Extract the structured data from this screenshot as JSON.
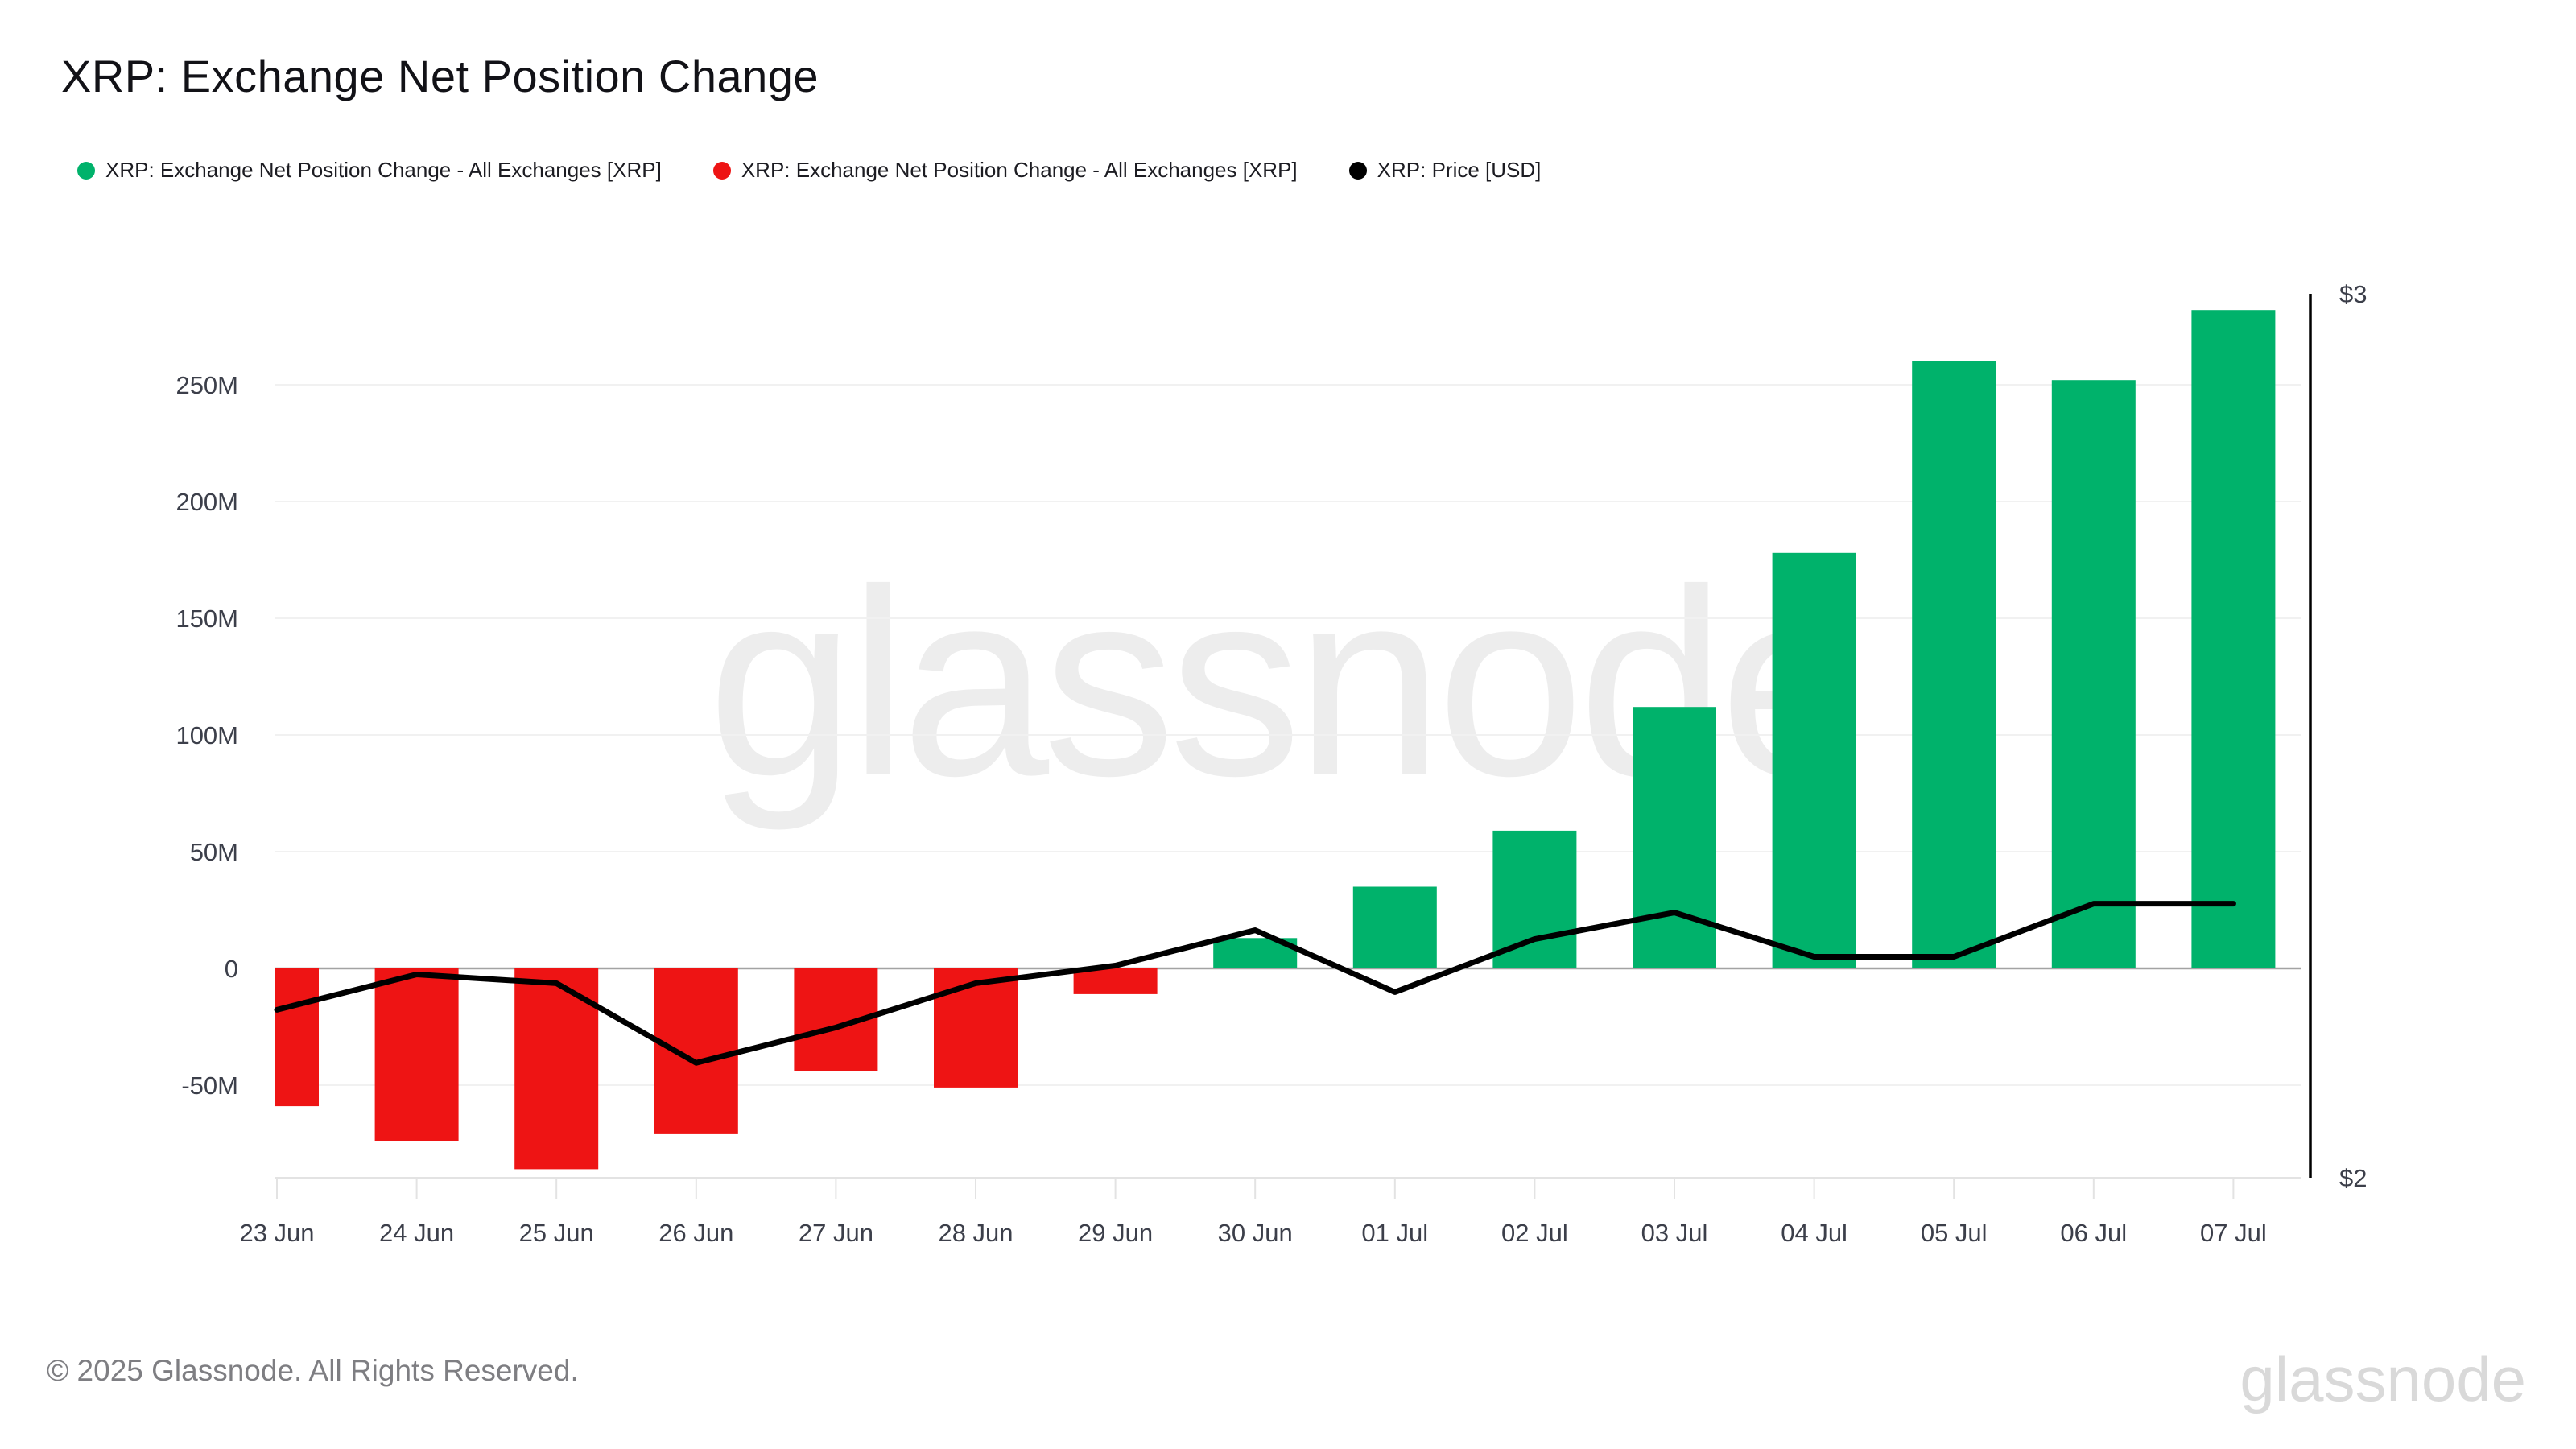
{
  "title": "XRP: Exchange Net Position Change",
  "legend": [
    {
      "label": "XRP: Exchange Net Position Change - All Exchanges [XRP]",
      "color": "#00b26b"
    },
    {
      "label": "XRP: Exchange Net Position Change - All Exchanges [XRP]",
      "color": "#ee1414"
    },
    {
      "label": "XRP: Price [USD]",
      "color": "#000000"
    }
  ],
  "watermark": "glassnode",
  "footer": {
    "copyright": "© 2025 Glassnode. All Rights Reserved.",
    "brand": "glassnode"
  },
  "chart_data": {
    "type": "bar",
    "title": "XRP: Exchange Net Position Change",
    "categories": [
      "23 Jun",
      "24 Jun",
      "25 Jun",
      "26 Jun",
      "27 Jun",
      "28 Jun",
      "29 Jun",
      "30 Jun",
      "01 Jul",
      "02 Jul",
      "03 Jul",
      "04 Jul",
      "05 Jul",
      "06 Jul",
      "07 Jul"
    ],
    "series": [
      {
        "name": "XRP: Exchange Net Position Change - All Exchanges [XRP]",
        "type": "bar",
        "unit": "XRP (millions)",
        "values_m": [
          -59,
          -74,
          -86,
          -71,
          -44,
          -51,
          -11,
          13,
          35,
          59,
          112,
          178,
          260,
          252,
          282
        ]
      },
      {
        "name": "XRP: Price [USD]",
        "type": "line",
        "unit": "USD",
        "values": [
          2.19,
          2.23,
          2.22,
          2.13,
          2.17,
          2.22,
          2.24,
          2.28,
          2.21,
          2.27,
          2.3,
          2.25,
          2.25,
          2.31,
          2.31
        ]
      }
    ],
    "y_axis": {
      "side": "left",
      "tick_labels": [
        "250M",
        "200M",
        "150M",
        "100M",
        "50M",
        "0",
        "-50M"
      ],
      "tick_values_m": [
        250,
        200,
        150,
        100,
        50,
        0,
        -50
      ],
      "ylim_m": [
        -90,
        290
      ],
      "grid": true
    },
    "price_axis": {
      "side": "right",
      "tick_labels": [
        "$3",
        "$2"
      ],
      "tick_values": [
        3,
        2
      ],
      "ylim": [
        2,
        3
      ]
    },
    "legend_position": "top-left",
    "colors": {
      "positive_bar": "#00b26b",
      "negative_bar": "#ee1414",
      "price_line": "#000000",
      "gridline": "#f1f1f1",
      "zero_line": "#a3a3a3",
      "axis_line": "#e3e3e3",
      "tick_label": "#3c3f4a",
      "watermark": "#ededed"
    }
  }
}
